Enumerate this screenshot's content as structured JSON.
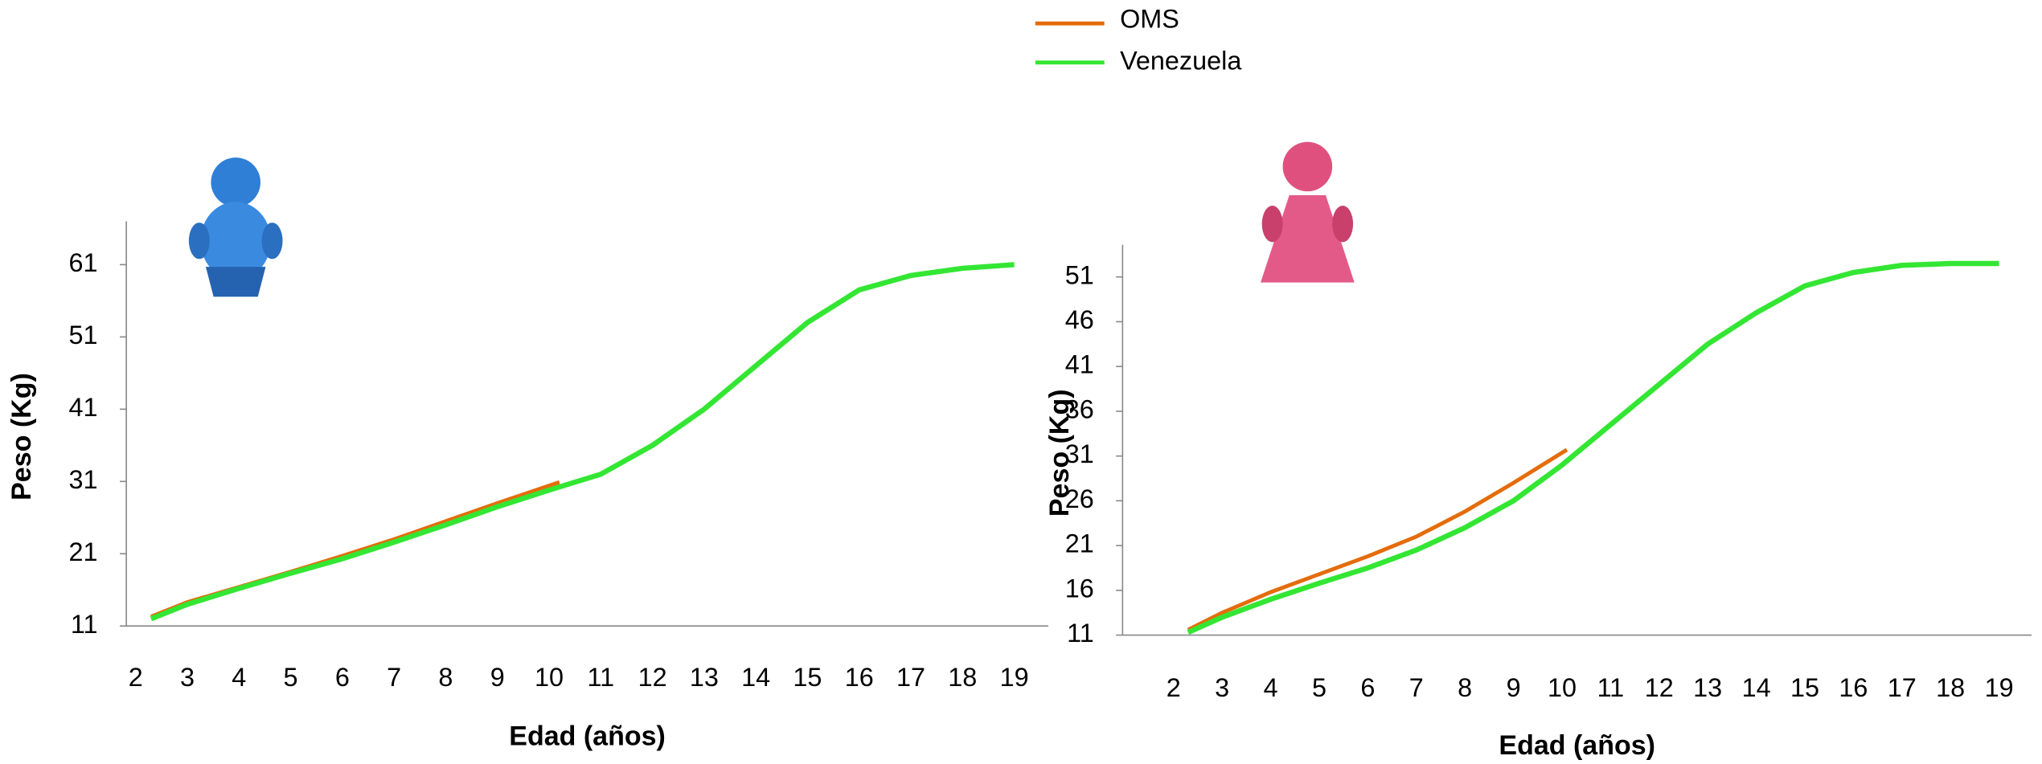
{
  "chart_data": [
    {
      "type": "line",
      "y_label": "Peso (Kg)",
      "x_label": "Edad (años)",
      "xlim": [
        1.82,
        19.66
      ],
      "ylim": [
        11,
        67
      ],
      "xticks": [
        2,
        3,
        4,
        5,
        6,
        7,
        8,
        9,
        10,
        11,
        12,
        13,
        14,
        15,
        16,
        17,
        18,
        19
      ],
      "yticks": [
        11,
        21,
        31,
        41,
        51,
        61
      ],
      "series": [
        {
          "name": "OMS",
          "color": "#e46c0a",
          "x": [
            2.3,
            3,
            4,
            5,
            6,
            7,
            8,
            9,
            10.2
          ],
          "values": [
            12.3,
            14.3,
            16.4,
            18.5,
            20.7,
            23,
            25.5,
            28,
            30.9
          ]
        },
        {
          "name": "Venezuela",
          "color": "#33e633",
          "x": [
            2.3,
            3,
            4,
            5,
            6,
            7,
            8,
            9,
            10,
            11,
            12,
            13,
            14,
            15,
            16,
            17,
            18,
            19
          ],
          "values": [
            12,
            14,
            16.2,
            18.3,
            20.3,
            22.6,
            25,
            27.5,
            29.8,
            32,
            36,
            41,
            47,
            53,
            57.5,
            59.5,
            60.5,
            61
          ]
        }
      ]
    },
    {
      "type": "line",
      "y_label": "Peso (Kg)",
      "x_label": "Edad (años)",
      "xlim": [
        0.95,
        19.67
      ],
      "ylim": [
        11,
        54.6
      ],
      "xticks": [
        2,
        3,
        4,
        5,
        6,
        7,
        8,
        9,
        10,
        11,
        12,
        13,
        14,
        15,
        16,
        17,
        18,
        19
      ],
      "yticks": [
        11,
        16,
        21,
        26,
        31,
        36,
        41,
        46,
        51
      ],
      "series": [
        {
          "name": "OMS",
          "color": "#e46c0a",
          "x": [
            2.3,
            3,
            4,
            5,
            6,
            7,
            8,
            9,
            10.1
          ],
          "values": [
            11.6,
            13.5,
            15.8,
            17.8,
            19.8,
            22,
            24.8,
            28,
            31.7
          ]
        },
        {
          "name": "Venezuela",
          "color": "#33e633",
          "x": [
            2.3,
            3,
            4,
            5,
            6,
            7,
            8,
            9,
            10,
            11,
            12,
            13,
            14,
            15,
            16,
            17,
            18,
            19
          ],
          "values": [
            11.3,
            13,
            15,
            16.8,
            18.5,
            20.5,
            23,
            26,
            30,
            34.5,
            39,
            43.5,
            47,
            50,
            51.5,
            52.3,
            52.5,
            52.5
          ]
        }
      ]
    }
  ]
}
